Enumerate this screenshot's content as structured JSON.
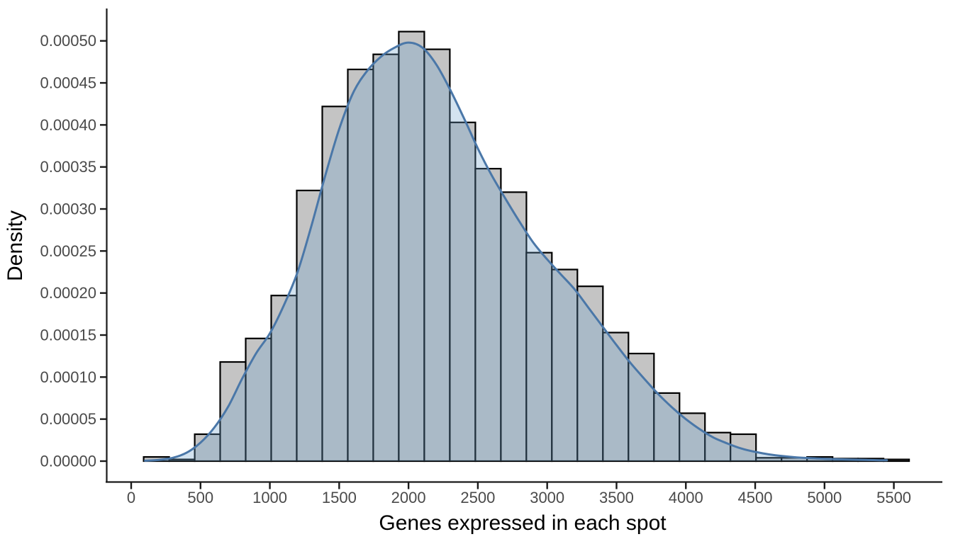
{
  "chart_data": {
    "type": "bar",
    "subtype": "histogram-with-density-overlay",
    "title": "",
    "xlabel": "Genes expressed in each spot",
    "ylabel": "Density",
    "grid": false,
    "legend": false,
    "xlim": [
      -180,
      5850
    ],
    "ylim": [
      0,
      0.00052
    ],
    "x_ticks": [
      0,
      500,
      1000,
      1500,
      2000,
      2500,
      3000,
      3500,
      4000,
      4500,
      5000,
      5500
    ],
    "y_ticks": {
      "values": [
        0,
        5e-05,
        0.0001,
        0.00015,
        0.0002,
        0.00025,
        0.0003,
        0.00035,
        0.0004,
        0.00045,
        0.0005
      ],
      "labels": [
        "0.00000",
        "0.00005",
        "0.00010",
        "0.00015",
        "0.00020",
        "0.00025",
        "0.00030",
        "0.00035",
        "0.00040",
        "0.00045",
        "0.00050"
      ]
    },
    "histogram": {
      "bin_start": 90,
      "bin_width": 184,
      "densities": [
        5e-06,
        2e-06,
        3.2e-05,
        0.000118,
        0.000146,
        0.000197,
        0.000322,
        0.000422,
        0.000466,
        0.000484,
        0.000511,
        0.00049,
        0.000403,
        0.000348,
        0.00032,
        0.000248,
        0.000228,
        0.000208,
        0.000153,
        0.000128,
        8.1e-05,
        5.7e-05,
        3.4e-05,
        3.2e-05,
        4e-06,
        4e-06,
        5e-06,
        3e-06,
        3e-06,
        2e-06
      ]
    },
    "density_curve": {
      "x": [
        100,
        200,
        300,
        400,
        500,
        600,
        700,
        800,
        900,
        1000,
        1100,
        1200,
        1300,
        1400,
        1500,
        1600,
        1700,
        1800,
        1900,
        2000,
        2100,
        2200,
        2300,
        2400,
        2500,
        2600,
        2700,
        2800,
        2900,
        3000,
        3100,
        3200,
        3300,
        3400,
        3500,
        3600,
        3700,
        3800,
        3900,
        4000,
        4100,
        4200,
        4300,
        4400,
        4500,
        4600,
        4700,
        4800,
        4900,
        5000,
        5100,
        5200,
        5300,
        5400,
        5450
      ],
      "density": [
        5e-07,
        1.5e-06,
        4e-06,
        1e-05,
        2.2e-05,
        4e-05,
        6.5e-05,
        9.8e-05,
        0.000128,
        0.000152,
        0.000185,
        0.000225,
        0.00028,
        0.00034,
        0.000395,
        0.000438,
        0.000464,
        0.000481,
        0.000492,
        0.000498,
        0.000492,
        0.000472,
        0.000442,
        0.000408,
        0.000372,
        0.00034,
        0.000312,
        0.000285,
        0.00026,
        0.00024,
        0.000222,
        0.000204,
        0.000182,
        0.00016,
        0.000138,
        0.000117,
        9.8e-05,
        8e-05,
        6.4e-05,
        5e-05,
        3.8e-05,
        2.8e-05,
        2.1e-05,
        1.5e-05,
        1.1e-05,
        8e-06,
        6e-06,
        4.5e-06,
        3.5e-06,
        2.8e-06,
        2.2e-06,
        1.8e-06,
        1.4e-06,
        1.1e-06,
        1e-06
      ]
    },
    "colors": {
      "background": "#ffffff",
      "bar_fill": "#c4c4c4",
      "bar_stroke": "#000000",
      "density_fill": "rgba(108,162,205,0.30)",
      "density_stroke": "#4a77a8",
      "axis_line": "#1a1a1a",
      "tick_label": "#4a4a4a",
      "axis_title": "#000000"
    }
  }
}
